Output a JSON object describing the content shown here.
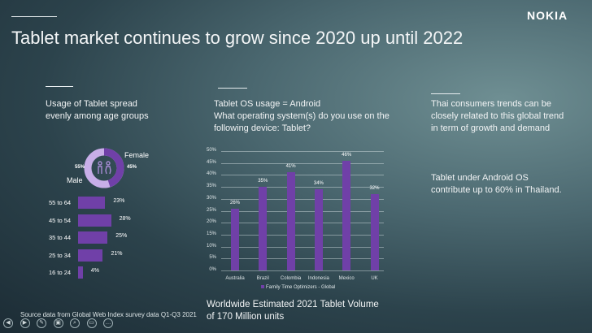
{
  "brand": "NOKIA",
  "title": "Tablet market continues to grow since 2020 up until 2022",
  "left": {
    "heading_line1": "Usage of Tablet spread",
    "heading_line2": "evenly among age groups",
    "gender": {
      "female_label": "Female",
      "female_value": "45%",
      "male_label": "Male",
      "male_value": "55%",
      "female_pct": 45,
      "male_pct": 55,
      "icon": "people-icon"
    },
    "age_groups": [
      {
        "label": "55 to 64",
        "value": "23%",
        "pct": 23
      },
      {
        "label": "45 to 54",
        "value": "28%",
        "pct": 28
      },
      {
        "label": "35 to 44",
        "value": "25%",
        "pct": 25
      },
      {
        "label": "25 to 34",
        "value": "21%",
        "pct": 21
      },
      {
        "label": "16 to 24",
        "value": "4%",
        "pct": 4
      }
    ]
  },
  "middle": {
    "heading_line1": "Tablet OS usage = Android",
    "heading_line2": "What operating system(s) do you use on the",
    "heading_line3": "following device: Tablet?",
    "footer_line1": "Worldwide Estimated 2021 Tablet Volume",
    "footer_line2": "of 170 Million units"
  },
  "chart_data": {
    "type": "bar",
    "categories": [
      "Australia",
      "Brazil",
      "Colombia",
      "Indonesia",
      "Mexico",
      "UK"
    ],
    "series": [
      {
        "name": "Family Time Optimizers - Global",
        "values": [
          26,
          35,
          41,
          34,
          46,
          32
        ],
        "color": "#7040a8"
      }
    ],
    "data_labels": [
      "26%",
      "35%",
      "41%",
      "34%",
      "46%",
      "32%"
    ],
    "yticks": [
      "0%",
      "5%",
      "10%",
      "15%",
      "20%",
      "25%",
      "30%",
      "35%",
      "40%",
      "45%",
      "50%"
    ],
    "ylim": [
      0,
      50
    ],
    "grid": true,
    "legend": "bottom"
  },
  "right": {
    "p1_line1": "Thai consumers trends can be",
    "p1_line2": "closely related to this global trend",
    "p1_line3": "in term of growth and demand",
    "p2_line1": "Tablet under Android OS",
    "p2_line2": "contribute up to 60% in Thailand."
  },
  "source": "Source data from Global Web Index survey data Q1-Q3 2021",
  "controls": [
    "previous-icon",
    "next-icon",
    "pen-icon",
    "slides-icon",
    "zoom-icon",
    "subtitles-icon",
    "more-icon"
  ]
}
